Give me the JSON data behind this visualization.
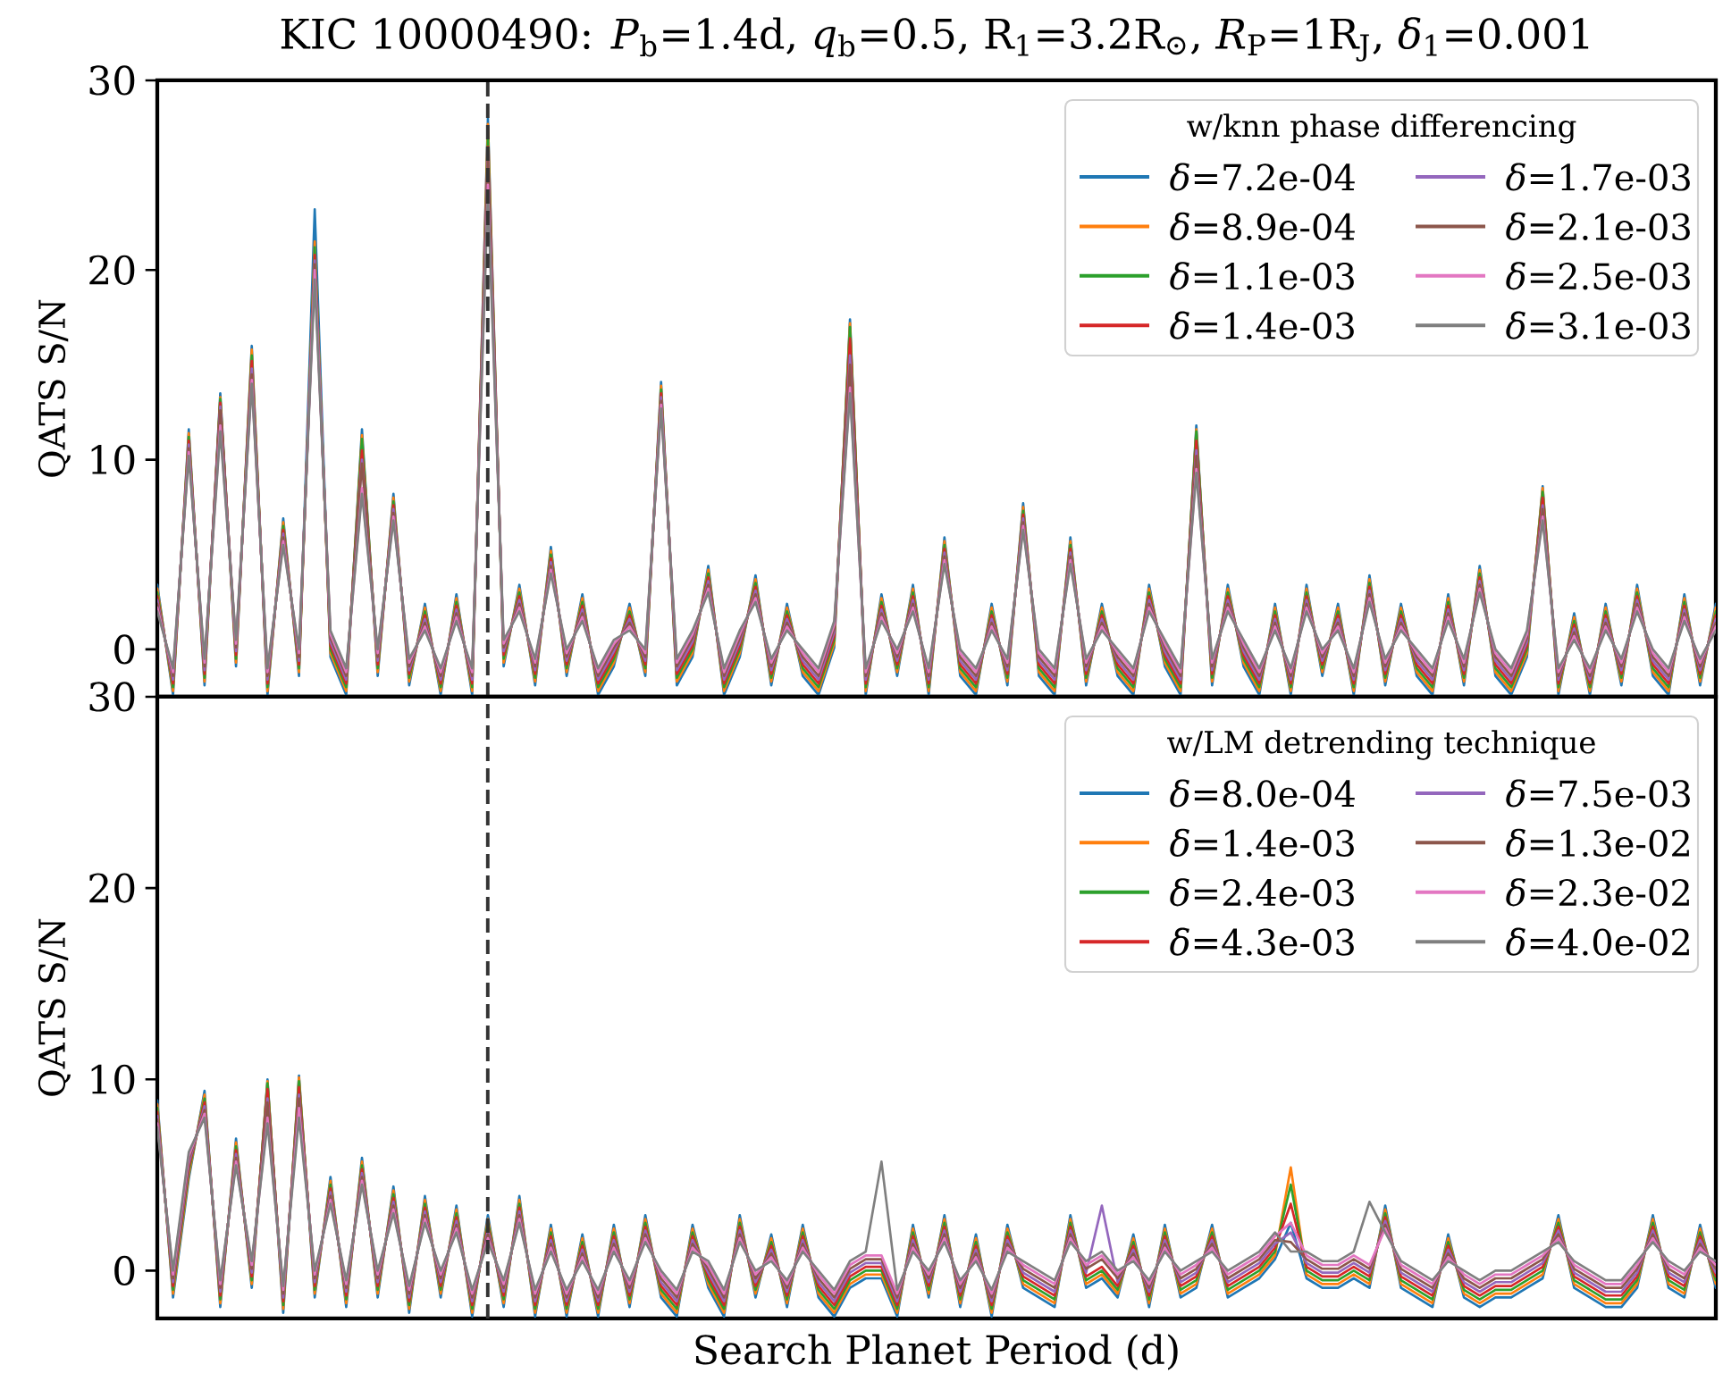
{
  "chart_data": [
    {
      "type": "line",
      "title": "KIC 10000490: *P*$_{b}$=1.4d, *q*$_{b}$=0.5, R$_{1}$=3.2R$_{⊙}$, *R*$_{P}$=1R$_{J}$, *δ*$_{1}$=0.001",
      "ylabel": "QATS S/N",
      "categories": [
        null,
        null,
        null,
        null,
        null,
        null,
        null,
        null,
        null,
        null,
        null,
        null,
        null,
        null,
        null,
        null,
        null,
        null,
        null,
        null,
        null,
        null,
        null,
        null,
        null,
        null,
        null,
        null,
        null,
        null,
        null,
        null,
        null,
        null,
        null,
        null,
        null,
        null,
        null,
        null,
        null,
        null,
        null,
        null,
        null,
        null,
        null,
        null,
        null,
        null,
        null,
        null,
        null,
        null,
        null,
        null,
        null,
        null,
        null,
        null,
        null,
        null,
        null,
        null,
        null,
        null,
        null,
        null,
        null,
        null,
        null,
        null,
        null,
        null,
        null,
        null,
        null,
        null,
        null,
        null,
        null,
        null,
        null,
        null,
        null,
        null,
        null,
        null,
        null,
        null,
        null,
        null,
        null,
        null,
        null,
        null,
        null,
        null,
        null,
        null
      ],
      "ylim": [
        -2.5,
        30
      ],
      "yticks": [
        0,
        10,
        20,
        30
      ],
      "tick_labels": "y",
      "legend": "top right",
      "legend_title": "w/knn phase differencing",
      "series": [
        {
          "name": "*δ*=7.2e-04",
          "color": "#1f77b4",
          "values": [
            3.4,
            -2.4,
            11.6,
            -1.9,
            13.5,
            -0.9,
            16.0,
            -2.4,
            6.9,
            -1.4,
            23.2,
            -0.4,
            -2.4,
            11.6,
            -1.4,
            8.2,
            -1.9,
            2.4,
            -2.4,
            2.9,
            -2.4,
            28.0,
            -0.9,
            3.4,
            -1.9,
            5.4,
            -1.4,
            2.9,
            -2.4,
            -0.9,
            2.4,
            -1.4,
            14.1,
            -1.9,
            -0.4,
            4.4,
            -2.4,
            -0.4,
            3.9,
            -1.9,
            2.4,
            -1.4,
            -2.4,
            0.1,
            17.4,
            -2.4,
            2.9,
            -1.4,
            3.4,
            -2.4,
            5.9,
            -1.4,
            -2.4,
            2.4,
            -1.9,
            7.7,
            -1.4,
            -2.4,
            5.9,
            -1.9,
            2.4,
            -1.4,
            -2.4,
            3.4,
            -0.9,
            -2.4,
            11.8,
            -1.9,
            3.4,
            -0.9,
            -2.4,
            2.4,
            -2.4,
            3.4,
            -1.4,
            2.4,
            -2.4,
            3.9,
            -1.9,
            2.4,
            -1.4,
            -2.4,
            2.9,
            -1.9,
            4.4,
            -1.4,
            -2.4,
            -0.4,
            8.6,
            -2.4,
            1.9,
            -2.4,
            2.4,
            -1.9,
            3.4,
            -1.4,
            -2.4,
            2.9,
            -1.9,
            2.4
          ]
        },
        {
          "name": "*δ*=8.9e-04",
          "color": "#ff7f0e",
          "values": [
            3.2,
            -2.2,
            11.4,
            -1.7,
            13.3,
            -0.7,
            15.8,
            -2.2,
            6.7,
            -1.2,
            21.5,
            -0.2,
            -2.2,
            11.3,
            -1.2,
            8.0,
            -1.7,
            2.2,
            -2.2,
            2.7,
            -2.2,
            27.7,
            -0.7,
            3.2,
            -1.7,
            5.2,
            -1.2,
            2.7,
            -2.2,
            -0.7,
            2.2,
            -1.2,
            13.9,
            -1.7,
            -0.2,
            4.2,
            -2.2,
            -0.2,
            3.7,
            -1.7,
            2.2,
            -1.2,
            -2.2,
            0.3,
            17.2,
            -2.2,
            2.7,
            -1.2,
            3.2,
            -2.2,
            5.7,
            -1.2,
            -2.2,
            2.2,
            -1.7,
            7.5,
            -1.2,
            -2.2,
            5.7,
            -1.7,
            2.2,
            -1.2,
            -2.2,
            3.2,
            -0.7,
            -2.2,
            11.6,
            -1.7,
            3.2,
            -0.7,
            -2.2,
            2.2,
            -2.2,
            3.2,
            -1.2,
            2.2,
            -2.2,
            3.7,
            -1.7,
            2.2,
            -1.2,
            -2.2,
            2.7,
            -1.7,
            4.2,
            -1.2,
            -2.2,
            -0.2,
            8.5,
            -2.2,
            1.7,
            -2.2,
            2.2,
            -1.7,
            3.2,
            -1.2,
            -2.2,
            2.7,
            -1.7,
            2.2
          ]
        },
        {
          "name": "*δ*=1.1e-03",
          "color": "#2ca02c",
          "values": [
            3,
            -2,
            11.2,
            -1.5,
            13.2,
            -0.5,
            15.5,
            -2,
            6.5,
            -1,
            21.2,
            0,
            -2,
            11.1,
            -1,
            7.8,
            -1.5,
            2,
            -2,
            2.5,
            -2,
            27.0,
            -0.5,
            3,
            -1.5,
            5,
            -1,
            2.5,
            -2,
            -0.5,
            2,
            -1,
            13.7,
            -1.5,
            0,
            4,
            -2,
            0,
            3.5,
            -1.5,
            2,
            -1,
            -2,
            0.5,
            17.0,
            -2,
            2.5,
            -1,
            3,
            -2,
            5.5,
            -1,
            -2,
            2,
            -1.5,
            7.3,
            -1,
            -2,
            5.5,
            -1.5,
            2,
            -1,
            -2,
            3,
            -0.5,
            -2,
            11.5,
            -1.5,
            3,
            -0.5,
            -2,
            2,
            -2,
            3,
            -1,
            2,
            -2,
            3.5,
            -1.5,
            2,
            -1,
            -2,
            2.5,
            -1.5,
            4,
            -1,
            -2,
            0,
            8.3,
            -2,
            1.5,
            -2,
            2,
            -1.5,
            3,
            -1,
            -2,
            2.5,
            -1.5,
            2
          ]
        },
        {
          "name": "*δ*=1.4e-03",
          "color": "#d62728",
          "values": [
            2.8,
            -1.8,
            11.0,
            -1.3,
            13.0,
            -0.3,
            15.2,
            -1.8,
            6.3,
            -0.8,
            20.8,
            0.2,
            -1.8,
            10.5,
            -0.8,
            7.6,
            -1.3,
            1.8,
            -1.8,
            2.3,
            -1.8,
            26.5,
            -0.3,
            2.8,
            -1.3,
            4.8,
            -0.8,
            2.3,
            -1.8,
            -0.3,
            1.8,
            -0.8,
            13.5,
            -1.3,
            0.2,
            3.8,
            -1.8,
            0.2,
            3.3,
            -1.3,
            1.8,
            -0.8,
            -1.8,
            0.7,
            16.4,
            -1.8,
            2.3,
            -0.8,
            2.8,
            -1.8,
            5.3,
            -0.8,
            -1.8,
            1.8,
            -1.3,
            7.1,
            -0.8,
            -1.8,
            5.3,
            -1.3,
            1.8,
            -0.8,
            -1.8,
            2.8,
            -0.3,
            -1.8,
            11.0,
            -1.3,
            2.8,
            -0.3,
            -1.8,
            1.8,
            -1.8,
            2.8,
            -0.8,
            1.8,
            -1.8,
            3.3,
            -1.3,
            1.8,
            -0.8,
            -1.8,
            2.3,
            -1.3,
            3.8,
            -0.8,
            -1.8,
            0.2,
            8.0,
            -1.8,
            1.3,
            -1.8,
            1.8,
            -1.3,
            2.8,
            -0.8,
            -1.8,
            2.3,
            -1.3,
            1.8
          ]
        },
        {
          "name": "*δ*=1.7e-03",
          "color": "#9467bd",
          "values": [
            2.6,
            -1.6,
            10.8,
            -1.1,
            12.8,
            -0.1,
            14.8,
            -1.6,
            6.1,
            -0.6,
            20.5,
            0.4,
            -1.6,
            10.0,
            -0.6,
            7.4,
            -1.1,
            1.6,
            -1.6,
            2.1,
            -1.6,
            26.2,
            -0.1,
            2.6,
            -1.1,
            4.6,
            -0.6,
            2.1,
            -1.6,
            -0.1,
            1.6,
            -0.6,
            13.3,
            -1.1,
            0.4,
            3.6,
            -1.6,
            0.4,
            3.1,
            -1.1,
            1.6,
            -0.6,
            -1.6,
            0.9,
            15.5,
            -1.6,
            2.1,
            -0.6,
            2.6,
            -1.6,
            5.1,
            -0.6,
            -1.6,
            1.6,
            -1.1,
            6.9,
            -0.6,
            -1.6,
            5.1,
            -1.1,
            1.6,
            -0.6,
            -1.6,
            2.6,
            -0.1,
            -1.6,
            10.5,
            -1.1,
            2.6,
            -0.1,
            -1.6,
            1.6,
            -1.6,
            2.6,
            -0.6,
            1.6,
            -1.6,
            3.1,
            -1.1,
            1.6,
            -0.6,
            -1.6,
            2.1,
            -1.1,
            3.6,
            -0.6,
            -1.6,
            0.4,
            7.6,
            -1.6,
            1.1,
            -1.6,
            1.6,
            -1.1,
            2.6,
            -0.6,
            -1.6,
            2.1,
            -1.1,
            1.6
          ]
        },
        {
          "name": "*δ*=2.1e-03",
          "color": "#8c564b",
          "values": [
            2.4,
            -1.4,
            10.6,
            -0.9,
            12.6,
            0.1,
            14.5,
            -1.4,
            5.9,
            -0.4,
            20.3,
            0.6,
            -1.4,
            9.8,
            -0.4,
            7.2,
            -0.9,
            1.4,
            -1.4,
            1.9,
            -1.4,
            25.8,
            0.1,
            2.4,
            -0.9,
            4.4,
            -0.4,
            1.9,
            -1.4,
            0.1,
            1.4,
            -0.4,
            13.1,
            -0.9,
            0.6,
            3.4,
            -1.4,
            0.6,
            2.9,
            -0.9,
            1.4,
            -0.4,
            -1.4,
            1.1,
            15.0,
            -1.4,
            1.9,
            -0.4,
            2.4,
            -1.4,
            4.9,
            -0.4,
            -1.4,
            1.4,
            -0.9,
            6.7,
            -0.4,
            -1.4,
            4.9,
            -0.9,
            1.4,
            -0.4,
            -1.4,
            2.4,
            0.1,
            -1.4,
            10.2,
            -0.9,
            2.4,
            0.1,
            -1.4,
            1.4,
            -1.4,
            2.4,
            -0.4,
            1.4,
            -1.4,
            2.9,
            -0.9,
            1.4,
            -0.4,
            -1.4,
            1.9,
            -0.9,
            3.4,
            -0.4,
            -1.4,
            0.6,
            7.4,
            -1.4,
            0.9,
            -1.4,
            1.4,
            -0.9,
            2.4,
            -0.4,
            -1.4,
            1.9,
            -0.9,
            1.4
          ]
        },
        {
          "name": "*δ*=2.5e-03",
          "color": "#e377c2",
          "values": [
            2.2,
            -1.2,
            10.4,
            -0.7,
            11.8,
            0.3,
            14.2,
            -1.2,
            5.7,
            -0.2,
            20.0,
            0.8,
            -1.2,
            8.5,
            -0.2,
            7.0,
            -0.7,
            1.2,
            -1.2,
            1.7,
            -1.2,
            24.5,
            0.3,
            2.2,
            -0.7,
            4.2,
            -0.2,
            1.7,
            -1.2,
            0.3,
            1.2,
            -0.2,
            12.9,
            -0.7,
            0.8,
            3.2,
            -1.2,
            0.8,
            2.7,
            -0.7,
            1.2,
            -0.2,
            -1.2,
            1.3,
            13.8,
            -1.2,
            1.7,
            -0.2,
            2.2,
            -1.2,
            4.7,
            -0.2,
            -1.2,
            1.2,
            -0.7,
            6.5,
            -0.2,
            -1.2,
            4.7,
            -0.7,
            1.2,
            -0.2,
            -1.2,
            2.2,
            0.3,
            -1.2,
            9.5,
            -0.7,
            2.2,
            0.3,
            -1.2,
            1.2,
            -1.2,
            2.2,
            -0.2,
            1.2,
            -1.2,
            2.7,
            -0.7,
            1.2,
            -0.2,
            -1.2,
            1.7,
            -0.7,
            3.2,
            -0.2,
            -1.2,
            0.8,
            7.0,
            -1.2,
            0.7,
            -1.2,
            1.2,
            -0.7,
            2.2,
            -0.2,
            -1.2,
            1.7,
            -0.7,
            1.2
          ]
        },
        {
          "name": "*δ*=3.1e-03",
          "color": "#7f7f7f",
          "values": [
            2,
            -1,
            10.2,
            -0.5,
            11.5,
            0.5,
            14.0,
            -1,
            5.5,
            0,
            19.5,
            1,
            -1,
            8.2,
            0,
            6.8,
            -0.5,
            1,
            -1,
            1.5,
            -1,
            24.0,
            0.5,
            2,
            -0.5,
            4,
            0,
            1.5,
            -1,
            0.5,
            1,
            0,
            12.7,
            -0.5,
            1,
            3,
            -1,
            1,
            2.5,
            -0.5,
            1,
            0,
            -1,
            1.5,
            13.5,
            -1,
            1.5,
            0,
            2,
            -1,
            4.5,
            0,
            -1,
            1,
            -0.5,
            6.3,
            0,
            -1,
            4.5,
            -0.5,
            1,
            0,
            -1,
            2,
            0.5,
            -1,
            9.3,
            -0.5,
            2,
            0.5,
            -1,
            1,
            -1,
            2,
            0,
            1,
            -1,
            2.5,
            -0.5,
            1,
            0,
            -1,
            1.5,
            -0.5,
            3,
            0,
            -1,
            1,
            6.8,
            -1,
            0.5,
            -1,
            1,
            -0.5,
            2,
            0,
            -1,
            1.5,
            -0.5,
            1
          ]
        }
      ]
    },
    {
      "type": "line",
      "xlabel": "Search Planet Period (d)",
      "ylabel": "QATS S/N",
      "categories": [
        null,
        null,
        null,
        null,
        null,
        null,
        null,
        null,
        null,
        null,
        null,
        null,
        null,
        null,
        null,
        null,
        null,
        null,
        null,
        null,
        null,
        null,
        null,
        null,
        null,
        null,
        null,
        null,
        null,
        null,
        null,
        null,
        null,
        null,
        null,
        null,
        null,
        null,
        null,
        null,
        null,
        null,
        null,
        null,
        null,
        null,
        null,
        null,
        null,
        null,
        null,
        null,
        null,
        null,
        null,
        null,
        null,
        null,
        null,
        null,
        null,
        null,
        null,
        null,
        null,
        null,
        null,
        null,
        null,
        null,
        null,
        null,
        null,
        null,
        null,
        null,
        null,
        null,
        null,
        null,
        null,
        null,
        null,
        null,
        null,
        null,
        null,
        null,
        null,
        null,
        null,
        null,
        null,
        null,
        null,
        null,
        null,
        null,
        null,
        null
      ],
      "ylim": [
        -2.5,
        30
      ],
      "yticks": [
        0,
        10,
        20,
        30
      ],
      "tick_labels": "y",
      "legend": "top right",
      "legend_title": "w/LM detrending technique",
      "series": [
        {
          "name": "*δ*=8.0e-04",
          "color": "#1f77b4",
          "values": [
            8.9,
            -1.4,
            4.8,
            9.4,
            -1.9,
            6.9,
            -0.9,
            10.0,
            -2.2,
            10.2,
            -1.4,
            4.9,
            -1.9,
            5.9,
            -1.4,
            4.4,
            -2.2,
            3.9,
            -1.4,
            3.4,
            -2.4,
            2.9,
            -1.9,
            3.9,
            -2.4,
            2.4,
            -2.4,
            1.9,
            -2.4,
            2.4,
            -1.9,
            2.9,
            -1.4,
            -2.4,
            2.4,
            -0.9,
            -2.4,
            2.9,
            -1.4,
            1.9,
            -1.9,
            2.4,
            -1.4,
            -2.4,
            -0.9,
            -0.4,
            -0.4,
            -2.4,
            2.4,
            -1.4,
            2.9,
            -1.9,
            1.9,
            -2.4,
            2.4,
            -0.9,
            -1.4,
            -1.9,
            2.9,
            -0.9,
            -0.4,
            -1.4,
            1.9,
            -1.9,
            2.4,
            -1.4,
            -0.9,
            2.4,
            -1.4,
            -0.9,
            -0.4,
            0.6,
            2.5,
            -0.4,
            -0.9,
            -0.9,
            -0.4,
            -0.9,
            3.4,
            -0.9,
            -1.4,
            -1.9,
            1.9,
            -1.4,
            -1.9,
            -1.4,
            -1.4,
            -0.9,
            -0.4,
            2.9,
            -0.9,
            -1.4,
            -1.9,
            -1.9,
            -0.9,
            2.9,
            -0.9,
            -1.4,
            2.4,
            -0.9
          ]
        },
        {
          "name": "*δ*=1.4e-03",
          "color": "#ff7f0e",
          "values": [
            8.7,
            -1.2,
            5.0,
            9.2,
            -1.7,
            6.7,
            -0.7,
            9.9,
            -2.0,
            10.1,
            -1.2,
            4.7,
            -1.7,
            5.7,
            -1.2,
            4.2,
            -2.0,
            3.7,
            -1.2,
            3.2,
            -2.2,
            2.7,
            -1.7,
            3.7,
            -2.2,
            2.2,
            -2.2,
            1.7,
            -2.2,
            2.2,
            -1.7,
            2.7,
            -1.2,
            -2.2,
            2.2,
            -0.7,
            -2.2,
            2.7,
            -1.2,
            1.7,
            -1.7,
            2.2,
            -1.2,
            -2.2,
            -0.7,
            -0.2,
            -0.2,
            -2.2,
            2.2,
            -1.2,
            2.7,
            -1.7,
            1.7,
            -2.2,
            2.2,
            -0.7,
            -1.2,
            -1.7,
            2.7,
            -0.7,
            -0.2,
            -1.2,
            1.7,
            -1.7,
            2.2,
            -1.2,
            -0.7,
            2.2,
            -1.2,
            -0.7,
            -0.2,
            0.8,
            5.4,
            -0.2,
            -0.7,
            -0.7,
            -0.2,
            -0.7,
            3.2,
            -0.7,
            -1.2,
            -1.7,
            1.7,
            -1.2,
            -1.7,
            -1.2,
            -1.2,
            -0.7,
            -0.2,
            2.7,
            -0.7,
            -1.2,
            -1.7,
            -1.7,
            -0.7,
            2.7,
            -0.7,
            -1.2,
            2.2,
            -0.7
          ]
        },
        {
          "name": "*δ*=2.4e-03",
          "color": "#2ca02c",
          "values": [
            8.5,
            -1,
            5.2,
            9,
            -1.5,
            6.5,
            -0.5,
            9.8,
            -1.8,
            9.9,
            -1,
            4.5,
            -1.5,
            5.5,
            -1,
            4,
            -1.8,
            3.5,
            -1,
            3,
            -2,
            2.5,
            -1.5,
            3.5,
            -2,
            2,
            -2,
            1.5,
            -2,
            2,
            -1.5,
            2.5,
            -1,
            -2,
            2,
            -0.5,
            -2,
            2.5,
            -1,
            1.5,
            -1.5,
            2,
            -1,
            -2,
            -0.5,
            0,
            0,
            -2,
            2,
            -1,
            2.5,
            -1.5,
            1.5,
            -2,
            2,
            -0.5,
            -1,
            -1.5,
            2.5,
            -0.5,
            0,
            -1,
            1.5,
            -1.5,
            2,
            -1,
            -0.5,
            2,
            -1,
            -0.5,
            0,
            1,
            4.5,
            0,
            -0.5,
            -0.5,
            0,
            -0.5,
            3,
            -0.5,
            -1,
            -1.5,
            1.5,
            -1,
            -1.5,
            -1,
            -1,
            -0.5,
            0,
            2.5,
            -0.5,
            -1,
            -1.5,
            -1.5,
            -0.5,
            2.5,
            -0.5,
            -1,
            2,
            -0.5
          ]
        },
        {
          "name": "*δ*=4.3e-03",
          "color": "#d62728",
          "values": [
            8.3,
            -0.8,
            5.4,
            8.8,
            -1.3,
            6.3,
            -0.3,
            9.5,
            -1.6,
            9.6,
            -0.8,
            4.3,
            -1.3,
            5.3,
            -0.8,
            3.8,
            -1.6,
            3.3,
            -0.8,
            2.8,
            -1.8,
            2.3,
            -1.3,
            3.3,
            -1.8,
            1.8,
            -1.8,
            1.3,
            -1.8,
            1.8,
            -1.3,
            2.3,
            -0.8,
            -1.8,
            1.8,
            -0.3,
            -1.8,
            2.3,
            -0.8,
            1.3,
            -1.3,
            1.8,
            -0.8,
            -1.8,
            -0.3,
            0.2,
            0.2,
            -1.8,
            1.8,
            -0.8,
            2.3,
            -1.3,
            1.3,
            -1.8,
            1.8,
            -0.3,
            -0.8,
            -1.3,
            2.3,
            -0.3,
            0.2,
            -0.8,
            1.3,
            -1.3,
            1.8,
            -0.8,
            -0.3,
            1.8,
            -0.8,
            -0.3,
            0.2,
            1.2,
            3.5,
            0.2,
            -0.3,
            -0.3,
            0.2,
            -0.3,
            2.8,
            -0.3,
            -0.8,
            -1.3,
            1.3,
            -0.8,
            -1.3,
            -0.8,
            -0.8,
            -0.3,
            0.2,
            2.3,
            -0.3,
            -0.8,
            -1.3,
            -1.3,
            -0.3,
            2.3,
            -0.3,
            -0.8,
            1.8,
            -0.3
          ]
        },
        {
          "name": "*δ*=7.5e-03",
          "color": "#9467bd",
          "values": [
            8.1,
            -0.6,
            5.6,
            8.6,
            -1.1,
            6.1,
            -0.1,
            9.0,
            -1.4,
            9.2,
            -0.6,
            4.1,
            -1.1,
            5.1,
            -0.6,
            3.6,
            -1.4,
            3.1,
            -0.6,
            2.6,
            -1.6,
            2.1,
            -1.1,
            3.1,
            -1.6,
            1.6,
            -1.6,
            1.1,
            -1.6,
            1.6,
            -1.1,
            2.1,
            -0.6,
            -1.6,
            1.6,
            -0.1,
            -1.6,
            2.1,
            -0.6,
            1.1,
            -1.1,
            1.6,
            -0.6,
            -1.6,
            -0.1,
            0.4,
            0.4,
            -1.6,
            1.6,
            -0.6,
            2.1,
            -1.1,
            1.1,
            -1.6,
            1.6,
            -0.1,
            -0.6,
            -1.1,
            2.1,
            -0.1,
            3.4,
            -0.6,
            1.1,
            -1.1,
            1.6,
            -0.6,
            -0.1,
            1.6,
            -0.6,
            -0.1,
            0.4,
            1.4,
            2.0,
            0.4,
            -0.1,
            -0.1,
            0.4,
            -0.1,
            2.6,
            -0.1,
            -0.6,
            -1.1,
            1.1,
            -0.6,
            -1.1,
            -0.6,
            -0.6,
            -0.1,
            0.4,
            2.1,
            -0.1,
            -0.6,
            -1.1,
            -1.1,
            -0.1,
            2.1,
            -0.1,
            -0.6,
            1.6,
            -0.1
          ]
        },
        {
          "name": "*δ*=1.3e-02",
          "color": "#8c564b",
          "values": [
            7.9,
            -0.4,
            5.8,
            8.4,
            -0.9,
            5.9,
            0.1,
            8.8,
            -1.2,
            9.0,
            -0.4,
            3.9,
            -0.9,
            4.9,
            -0.4,
            3.4,
            -1.2,
            2.9,
            -0.4,
            2.4,
            -1.4,
            1.9,
            -0.9,
            2.9,
            -1.4,
            1.4,
            -1.4,
            0.9,
            -1.4,
            1.4,
            -0.9,
            1.9,
            -0.4,
            -1.4,
            1.4,
            0.1,
            -1.4,
            1.9,
            -0.4,
            0.9,
            -0.9,
            1.4,
            -0.4,
            -1.4,
            0.1,
            0.6,
            0.6,
            -1.4,
            1.4,
            -0.4,
            1.9,
            -0.9,
            0.9,
            -1.4,
            1.4,
            0.1,
            -0.4,
            -0.9,
            1.9,
            0.1,
            0.6,
            -0.4,
            0.9,
            -0.9,
            1.4,
            -0.4,
            0.1,
            1.4,
            -0.4,
            0.1,
            0.6,
            1.6,
            1.5,
            0.6,
            0.1,
            0.1,
            0.6,
            0.1,
            2.4,
            0.1,
            -0.4,
            -0.9,
            0.9,
            -0.4,
            -0.9,
            -0.4,
            -0.4,
            0.1,
            0.6,
            1.9,
            0.1,
            -0.4,
            -0.9,
            -0.9,
            0.1,
            1.9,
            0.1,
            -0.4,
            1.4,
            0.1
          ]
        },
        {
          "name": "*δ*=2.3e-02",
          "color": "#e377c2",
          "values": [
            7.7,
            -0.2,
            6.0,
            8.2,
            -0.7,
            5.7,
            0.3,
            8.0,
            -1.0,
            8.5,
            -0.2,
            3.7,
            -0.7,
            4.7,
            -0.2,
            3.2,
            -1.0,
            2.7,
            -0.2,
            2.2,
            -1.2,
            1.7,
            -0.7,
            2.7,
            -1.2,
            1.2,
            -1.2,
            0.7,
            -1.2,
            1.2,
            -0.7,
            1.7,
            -0.2,
            -1.2,
            1.2,
            0.3,
            -1.2,
            1.7,
            -0.2,
            0.7,
            -0.7,
            1.2,
            -0.2,
            -1.2,
            0.3,
            0.8,
            0.8,
            -1.2,
            1.2,
            -0.2,
            1.7,
            -0.7,
            0.7,
            -1.2,
            1.2,
            0.3,
            -0.2,
            -0.7,
            1.7,
            0.3,
            0.8,
            -0.2,
            0.7,
            -0.7,
            1.2,
            -0.2,
            0.3,
            1.2,
            -0.2,
            0.3,
            0.8,
            1.8,
            2.5,
            0.8,
            0.3,
            0.3,
            0.8,
            0.3,
            2.2,
            0.3,
            -0.2,
            -0.7,
            0.7,
            -0.2,
            -0.7,
            -0.2,
            -0.2,
            0.3,
            0.8,
            1.7,
            0.3,
            -0.2,
            -0.7,
            -0.7,
            0.3,
            1.7,
            0.3,
            -0.2,
            1.2,
            0.3
          ]
        },
        {
          "name": "*δ*=4.0e-02",
          "color": "#7f7f7f",
          "values": [
            7.5,
            0,
            6.2,
            8,
            -0.5,
            5.5,
            0.5,
            7.7,
            -0.8,
            8.0,
            0,
            3.5,
            -0.5,
            4.5,
            0,
            3,
            -0.8,
            2.5,
            0,
            2,
            -1,
            1.5,
            -0.5,
            2.5,
            -1,
            1,
            -1,
            0.5,
            -1,
            1,
            -0.5,
            1.5,
            0,
            -1,
            1,
            0.5,
            -1,
            1.5,
            0,
            0.5,
            -0.5,
            1,
            0,
            -1,
            0.5,
            1,
            5.7,
            -1,
            1,
            0,
            1.5,
            -0.5,
            0.5,
            -1,
            1,
            0.5,
            0,
            -0.5,
            1.5,
            0.5,
            1,
            0,
            0.5,
            -0.5,
            1,
            0,
            0.5,
            1,
            0,
            0.5,
            1,
            2,
            1.0,
            1,
            0.5,
            0.5,
            1,
            3.6,
            2,
            0.5,
            0,
            -0.5,
            0.5,
            0,
            -0.5,
            0,
            0,
            0.5,
            1,
            1.5,
            0.5,
            0,
            -0.5,
            -0.5,
            0.5,
            1.5,
            0.5,
            0,
            1,
            0.5
          ]
        }
      ]
    }
  ]
}
